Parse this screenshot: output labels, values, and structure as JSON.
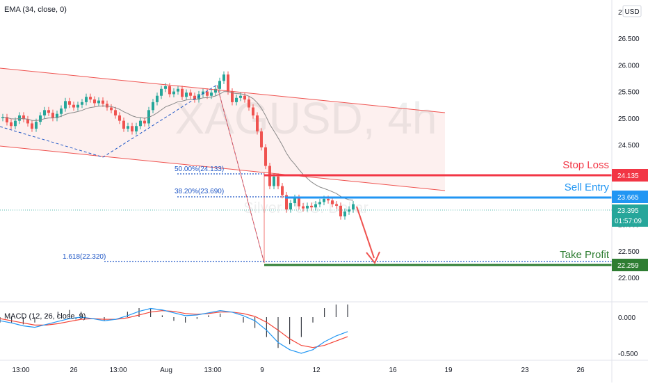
{
  "indicators": {
    "ema_label": "EMA (34, close, 0)",
    "macd_label": "MACD (12, 26, close, 9)"
  },
  "watermark": {
    "symbol": "XAGUSD, 4h",
    "name": "Silver / U.S. Dollar"
  },
  "currency_button": "USD",
  "price_axis": {
    "ticks": [
      "27.000",
      "26.500",
      "26.000",
      "25.500",
      "25.000",
      "24.500",
      "24.000",
      "23.500",
      "23.000",
      "22.500",
      "22.000"
    ],
    "values": [
      27.0,
      26.5,
      26.0,
      25.5,
      25.0,
      24.5,
      24.0,
      23.5,
      23.0,
      22.5,
      22.0
    ]
  },
  "macd_axis": {
    "ticks": [
      "0.000",
      "-0.500"
    ],
    "values": [
      0.0,
      -0.5
    ]
  },
  "time_axis": {
    "labels": [
      "13:00",
      "26",
      "13:00",
      "Aug",
      "13:00",
      "9",
      "12",
      "16",
      "19",
      "23",
      "26"
    ]
  },
  "levels": {
    "stop_loss": {
      "label": "Stop Loss",
      "price": "24.135",
      "value": 24.135,
      "color": "#f23645"
    },
    "sell_entry": {
      "label": "Sell Entry",
      "price": "23.665",
      "value": 23.665,
      "color": "#2196f3"
    },
    "take_profit": {
      "label": "Take Profit",
      "price": "22.259",
      "value": 22.259,
      "color": "#2e7d32"
    },
    "current": {
      "price": "23.395",
      "countdown": "01:57:09",
      "value": 23.395,
      "color": "#26a69a"
    }
  },
  "fib_labels": {
    "fib_50": "50.00%(24.133)",
    "fib_382": "38.20%(23.690)",
    "fib_1618": "1.618(22.320)"
  },
  "colors": {
    "up": "#26a69a",
    "down": "#ef5350",
    "channel": "#ef5350",
    "ema": "#888888",
    "macd_line": "#2196f3",
    "signal_line": "#f44336"
  },
  "chart_data": [
    {
      "type": "candlestick",
      "title": "XAGUSD, 4h",
      "y_unit": "USD",
      "ylim": [
        21.8,
        27.2
      ],
      "ticks": [
        27.0,
        26.5,
        26.0,
        25.5,
        25.0,
        24.5,
        24.0,
        23.5,
        23.0,
        22.5,
        22.0
      ],
      "x_labels": [
        "13:00",
        "26",
        "13:00",
        "Aug",
        "13:00",
        "9",
        "12",
        "16",
        "19",
        "23",
        "26"
      ],
      "close_series": [
        25.02,
        24.92,
        24.85,
        24.95,
        25.05,
        24.98,
        24.9,
        24.8,
        24.93,
        25.05,
        25.15,
        25.1,
        25.0,
        25.08,
        25.18,
        25.32,
        25.25,
        25.2,
        25.25,
        25.3,
        25.4,
        25.35,
        25.28,
        25.33,
        25.27,
        25.2,
        25.15,
        25.05,
        24.95,
        24.8,
        24.85,
        24.75,
        24.85,
        24.95,
        24.9,
        25.15,
        25.3,
        25.42,
        25.55,
        25.6,
        25.45,
        25.5,
        25.55,
        25.4,
        25.48,
        25.42,
        25.35,
        25.45,
        25.5,
        25.42,
        25.48,
        25.55,
        25.7,
        25.82,
        25.5,
        25.3,
        25.38,
        25.42,
        25.35,
        25.2,
        25.05,
        24.75,
        24.45,
        24.1,
        23.72,
        23.9,
        23.72,
        23.55,
        23.28,
        23.4,
        23.5,
        23.34,
        23.3,
        23.35,
        23.32,
        23.38,
        23.42,
        23.48,
        23.45,
        23.38,
        23.35,
        23.15,
        23.24,
        23.28,
        23.38
      ],
      "annotations": [
        {
          "label": "Stop Loss",
          "value": 24.135
        },
        {
          "label": "Sell Entry",
          "value": 23.665
        },
        {
          "label": "Take Profit",
          "value": 22.259
        },
        {
          "label": "50.00%(24.133)",
          "value": 24.133
        },
        {
          "label": "38.20%(23.690)",
          "value": 23.69
        },
        {
          "label": "1.618(22.320)",
          "value": 22.32
        }
      ],
      "overlays": [
        "EMA (34, close, 0)",
        "descending channel",
        "projection arrow to Take Profit"
      ],
      "grid": false
    },
    {
      "type": "line",
      "title": "MACD (12, 26, close, 9)",
      "ylim": [
        -0.62,
        0.15
      ],
      "ticks": [
        0.0,
        -0.5
      ],
      "series": [
        {
          "values": [
            -0.05,
            -0.08,
            -0.12,
            -0.14,
            -0.1,
            -0.06,
            -0.02,
            0.0,
            -0.02,
            -0.05,
            -0.03,
            0.02,
            0.08,
            0.12,
            0.1,
            0.06,
            0.02,
            0.03,
            0.06,
            0.09,
            0.07,
            0.02,
            -0.05,
            -0.18,
            -0.35,
            -0.45,
            -0.5,
            -0.45,
            -0.34,
            -0.26,
            -0.2
          ]
        },
        {
          "values": [
            -0.02,
            -0.05,
            -0.08,
            -0.11,
            -0.11,
            -0.09,
            -0.06,
            -0.03,
            -0.02,
            -0.03,
            -0.03,
            -0.01,
            0.03,
            0.07,
            0.09,
            0.08,
            0.05,
            0.04,
            0.05,
            0.07,
            0.07,
            0.05,
            0.01,
            -0.07,
            -0.18,
            -0.3,
            -0.39,
            -0.42,
            -0.39,
            -0.33,
            -0.27
          ]
        }
      ],
      "grid": false
    }
  ]
}
